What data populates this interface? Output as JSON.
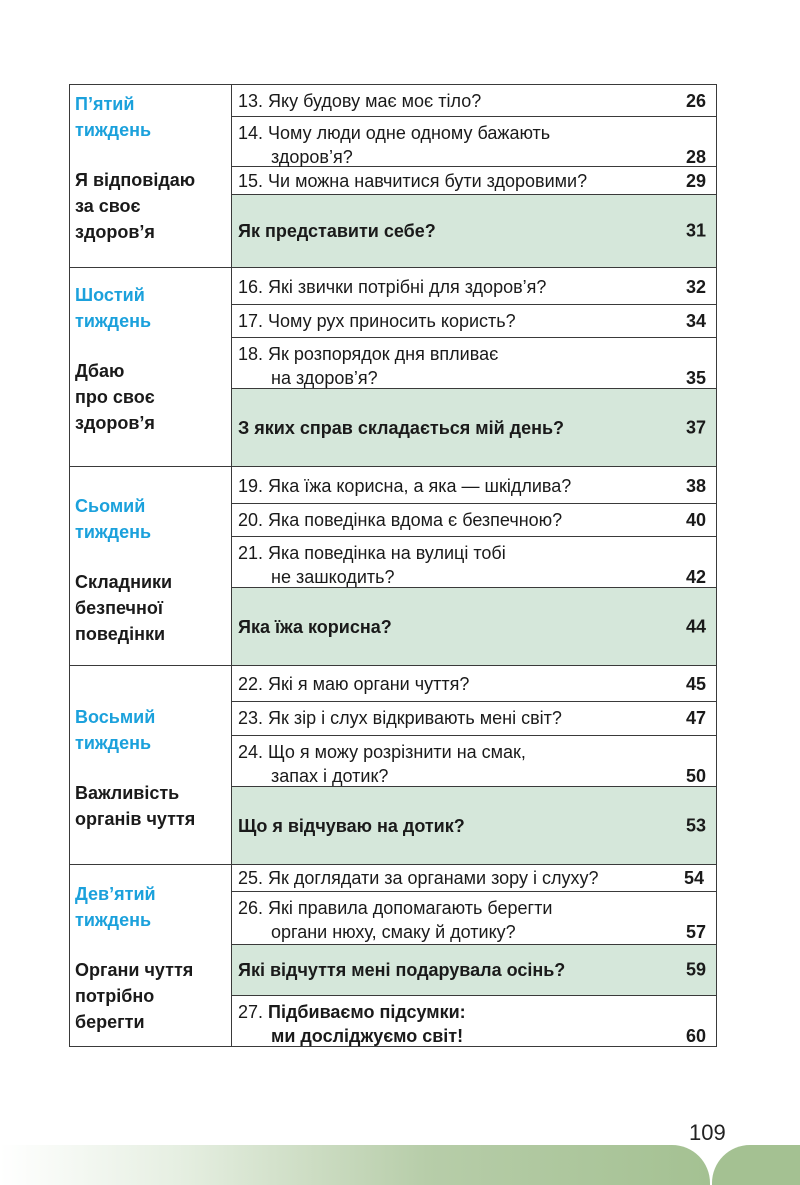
{
  "sections": [
    {
      "week": [
        "П’ятий",
        "тиждень"
      ],
      "theme": [
        "Я відповідаю",
        "за своє",
        "здоров’я"
      ],
      "lessons": [
        {
          "line1": "13. Яку будову має моє тіло?",
          "page": "26"
        },
        {
          "line1": "14. Чому люди одне одному бажають",
          "line2": "здоров’я?",
          "page": "28"
        },
        {
          "line1": "15. Чи можна навчитися бути здоровими?",
          "page": "29"
        }
      ],
      "project": {
        "title": "Як представити себе?",
        "page": "31"
      }
    },
    {
      "week": [
        "Шостий",
        "тиждень"
      ],
      "theme": [
        "Дбаю",
        "про своє",
        "здоров’я"
      ],
      "lessons": [
        {
          "line1": "16. Які звички потрібні для здоров’я?",
          "page": "32"
        },
        {
          "line1": "17. Чому рух приносить користь?",
          "page": "34"
        },
        {
          "line1": "18. Як розпорядок дня впливає",
          "line2": "на здоров’я?",
          "page": "35"
        }
      ],
      "project": {
        "title": "З яких справ складається мій день?",
        "page": "37"
      }
    },
    {
      "week": [
        "Сьомий",
        "тиждень"
      ],
      "theme": [
        "Складники",
        "безпечної",
        "поведінки"
      ],
      "lessons": [
        {
          "line1": "19. Яка їжа корисна, а яка — шкідлива?",
          "page": "38"
        },
        {
          "line1": "20. Яка поведінка вдома є безпечною?",
          "page": "40"
        },
        {
          "line1": "21. Яка поведінка на вулиці тобі",
          "line2": "не зашкодить?",
          "page": "42"
        }
      ],
      "project": {
        "title": "Яка їжа корисна?",
        "page": "44"
      }
    },
    {
      "week": [
        "Восьмий",
        "тиждень"
      ],
      "theme": [
        "Важливість",
        "органів чуття"
      ],
      "lessons": [
        {
          "line1": "22. Які я маю органи чуття?",
          "page": "45"
        },
        {
          "line1": "23. Як зір і слух відкривають мені світ?",
          "page": "47"
        },
        {
          "line1": "24. Що я можу розрізнити на смак,",
          "line2": "запах і дотик?",
          "page": "50"
        }
      ],
      "project": {
        "title": "Що я відчуваю на дотик?",
        "page": "53"
      }
    },
    {
      "week": [
        "Дев’ятий",
        "тиждень"
      ],
      "theme": [
        "Органи чуття",
        "потрібно",
        "берегти"
      ],
      "lessons": [
        {
          "line1": "25. Як доглядати за органами зору і слуху?",
          "page": "54"
        },
        {
          "line1": "26. Які правила допомагають берегти",
          "line2": "органи нюху, смаку й дотику?",
          "page": "57"
        }
      ],
      "project": {
        "title": "Які відчуття мені подарувала осінь?",
        "page": "59"
      },
      "final": {
        "num": "27.",
        "line1": "Підбиваємо підсумки:",
        "line2": "ми досліджуємо світ!",
        "page": "60"
      }
    }
  ],
  "page_number": "109",
  "colors": {
    "week_title": "#1ba1dc",
    "project_bg": "#d5e7da",
    "band": "#a4c192"
  }
}
